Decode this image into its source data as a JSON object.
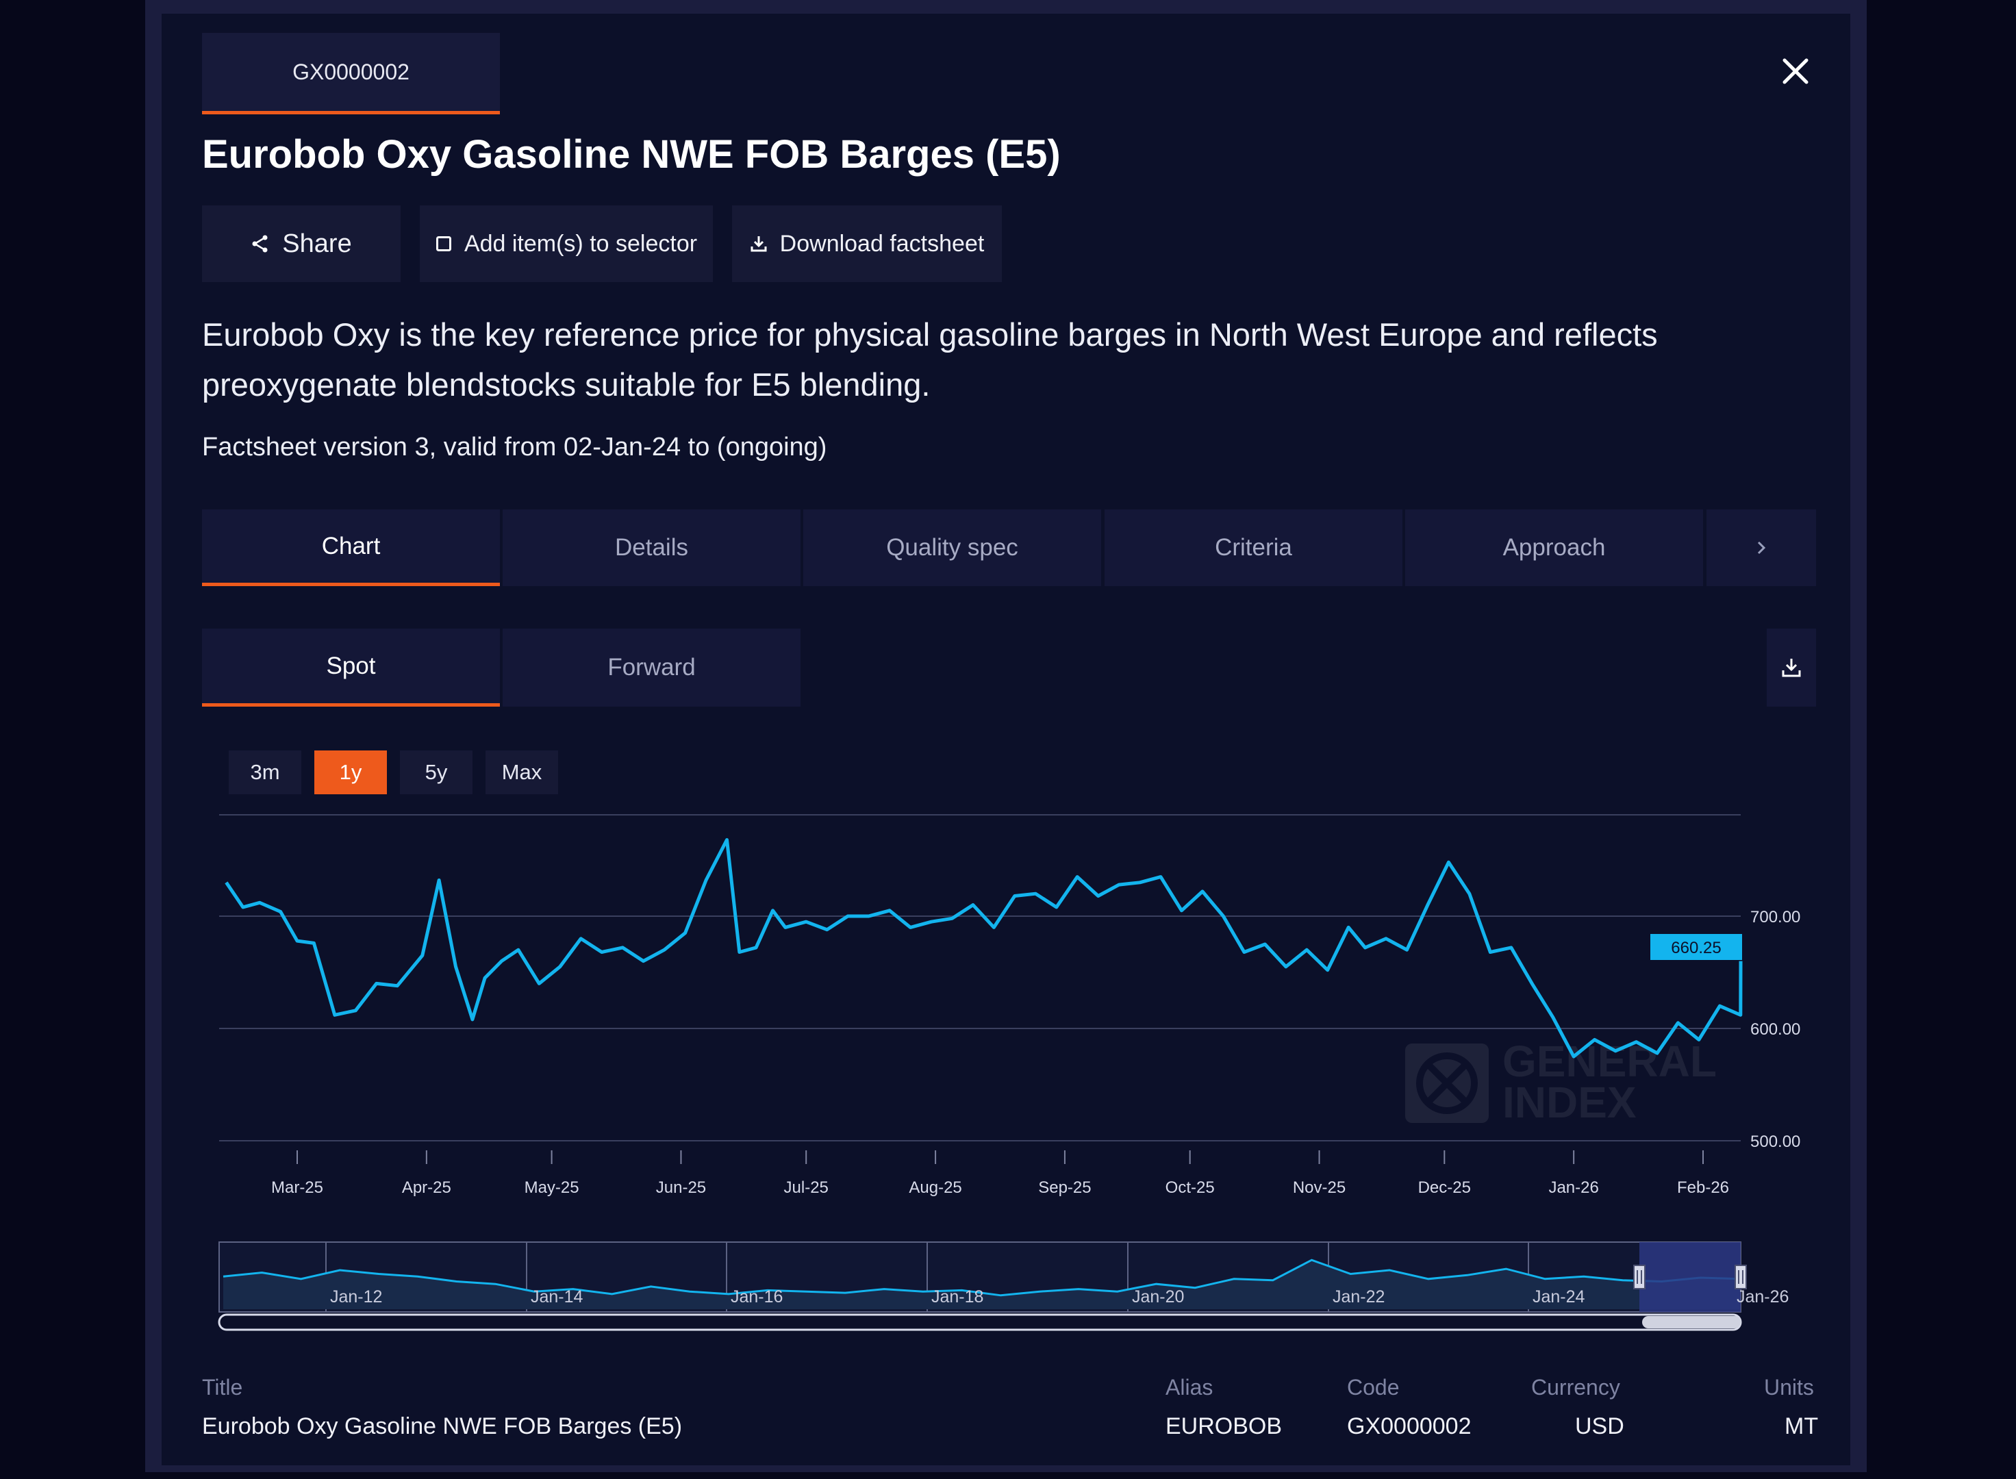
{
  "header": {
    "code_tab": "GX0000002",
    "title": "Eurobob Oxy Gasoline NWE FOB Barges (E5)"
  },
  "actions": {
    "share": "Share",
    "add_selector": "Add item(s) to selector",
    "download": "Download factsheet"
  },
  "description": "Eurobob Oxy is the key reference price for physical gasoline barges in North West Europe and reflects preoxygenate blendstocks suitable for E5 blending.",
  "version_line": "Factsheet version 3, valid from 02-Jan-24 to (ongoing)",
  "tabs": [
    {
      "label": "Chart",
      "active": true
    },
    {
      "label": "Details",
      "active": false
    },
    {
      "label": "Quality spec",
      "active": false
    },
    {
      "label": "Criteria",
      "active": false
    },
    {
      "label": "Approach",
      "active": false
    }
  ],
  "subtabs": [
    {
      "label": "Spot",
      "active": true
    },
    {
      "label": "Forward",
      "active": false
    }
  ],
  "ranges": [
    {
      "label": "3m",
      "active": false
    },
    {
      "label": "1y",
      "active": true
    },
    {
      "label": "5y",
      "active": false
    },
    {
      "label": "Max",
      "active": false
    }
  ],
  "icons": {
    "close": "close-icon",
    "share": "share-icon",
    "checkbox": "checkbox-icon",
    "download": "download-icon",
    "chevron": "chevron-right-icon"
  },
  "colors": {
    "accent": "#ee5a1c",
    "series": "#13b4ee",
    "background": "#0c1029"
  },
  "chart_data": {
    "type": "line",
    "title": "",
    "xlabel": "",
    "ylabel": "",
    "ylim": [
      450,
      750
    ],
    "yticks": [
      "700.00",
      "600.00",
      "500.00"
    ],
    "xticks": [
      "Mar-25",
      "Apr-25",
      "May-25",
      "Jun-25",
      "Jul-25",
      "Aug-25",
      "Sep-25",
      "Oct-25",
      "Nov-25",
      "Dec-25",
      "Jan-26",
      "Feb-26"
    ],
    "last_value_label": "660.25",
    "watermark": [
      "GENERAL",
      "INDEX"
    ],
    "series": [
      {
        "x": [
          "2025-02-12",
          "2025-02-16",
          "2025-02-20",
          "2025-02-25",
          "2025-03-01",
          "2025-03-05",
          "2025-03-10",
          "2025-03-15",
          "2025-03-20",
          "2025-03-25",
          "2025-03-31",
          "2025-04-04",
          "2025-04-08",
          "2025-04-12",
          "2025-04-15",
          "2025-04-19",
          "2025-04-23",
          "2025-04-28",
          "2025-05-03",
          "2025-05-08",
          "2025-05-13",
          "2025-05-18",
          "2025-05-23",
          "2025-05-28",
          "2025-06-02",
          "2025-06-07",
          "2025-06-12",
          "2025-06-15",
          "2025-06-19",
          "2025-06-23",
          "2025-06-26",
          "2025-07-01",
          "2025-07-06",
          "2025-07-11",
          "2025-07-16",
          "2025-07-21",
          "2025-07-26",
          "2025-07-31",
          "2025-08-05",
          "2025-08-10",
          "2025-08-15",
          "2025-08-20",
          "2025-08-25",
          "2025-08-30",
          "2025-09-04",
          "2025-09-09",
          "2025-09-14",
          "2025-09-19",
          "2025-09-24",
          "2025-09-29",
          "2025-10-04",
          "2025-10-09",
          "2025-10-14",
          "2025-10-19",
          "2025-10-24",
          "2025-10-29",
          "2025-11-03",
          "2025-11-08",
          "2025-11-12",
          "2025-11-17",
          "2025-11-22",
          "2025-11-27",
          "2025-12-02",
          "2025-12-07",
          "2025-12-12",
          "2025-12-17",
          "2025-12-22",
          "2025-12-27",
          "2026-01-01",
          "2026-01-06",
          "2026-01-11",
          "2026-01-16",
          "2026-01-21",
          "2026-01-26",
          "2026-01-31",
          "2026-02-05",
          "2026-02-10",
          "2026-02-15"
        ],
        "values": [
          730,
          708,
          712,
          704,
          678,
          676,
          612,
          616,
          640,
          638,
          665,
          732,
          655,
          608,
          645,
          660,
          670,
          640,
          655,
          680,
          668,
          672,
          660,
          670,
          685,
          732,
          768,
          668,
          672,
          705,
          690,
          695,
          688,
          700,
          700,
          705,
          690,
          695,
          698,
          710,
          690,
          718,
          720,
          708,
          735,
          718,
          728,
          730,
          735,
          705,
          722,
          700,
          668,
          675,
          655,
          670,
          652,
          690,
          672,
          680,
          670,
          710,
          748,
          720,
          668,
          672,
          640,
          610,
          575,
          590,
          580,
          588,
          578,
          605,
          590,
          620,
          612,
          660
        ]
      }
    ],
    "navigator": {
      "labels": [
        "Jan-12",
        "Jan-14",
        "Jan-16",
        "Jan-18",
        "Jan-20",
        "Jan-22",
        "Jan-24",
        "Jan-26"
      ],
      "values": [
        530,
        545,
        520,
        555,
        540,
        530,
        510,
        500,
        470,
        480,
        460,
        490,
        470,
        460,
        475,
        470,
        465,
        480,
        470,
        475,
        455,
        470,
        480,
        470,
        500,
        485,
        520,
        515,
        595,
        540,
        555,
        520,
        535,
        560,
        520,
        530,
        515,
        510,
        525,
        520
      ]
    }
  },
  "info": {
    "title_label": "Title",
    "title_value": "Eurobob Oxy Gasoline NWE FOB Barges (E5)",
    "alias_label": "Alias",
    "alias_value": "EUROBOB",
    "code_label": "Code",
    "code_value": "GX0000002",
    "currency_label": "Currency",
    "currency_value": "USD",
    "units_label": "Units",
    "units_value": "MT"
  }
}
